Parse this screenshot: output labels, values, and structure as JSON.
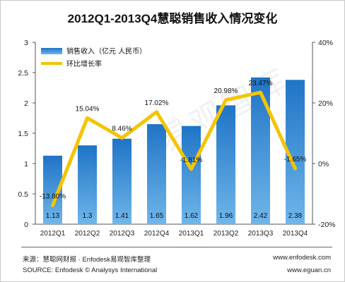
{
  "title": "2012Q1-2013Q4慧聪销售收入情况变化",
  "chart_data": {
    "type": "bar",
    "categories": [
      "2012Q1",
      "2012Q2",
      "2012Q3",
      "2012Q4",
      "2013Q1",
      "2013Q2",
      "2013Q3",
      "2013Q4"
    ],
    "series": [
      {
        "name": "销售收入（亿元  人民币）",
        "kind": "bar",
        "axis": "left",
        "values": [
          1.13,
          1.3,
          1.41,
          1.65,
          1.62,
          1.96,
          2.42,
          2.38
        ],
        "labels": [
          "1.13",
          "1.3",
          "1.41",
          "1.65",
          "1.62",
          "1.96",
          "2.42",
          "2.38"
        ]
      },
      {
        "name": "环比增长率",
        "kind": "line",
        "axis": "right",
        "values": [
          -13.8,
          15.04,
          8.46,
          17.02,
          -1.81,
          20.98,
          23.47,
          -1.65
        ],
        "labels": [
          "-13.80%",
          "15.04%",
          "8.46%",
          "17.02%",
          "-1.81%",
          "20.98%",
          "23.47%",
          "-1.65%"
        ]
      }
    ],
    "ylim": [
      0,
      3
    ],
    "y_ticks": [
      "0",
      "0.5",
      "1",
      "1.5",
      "2",
      "2.5",
      "3"
    ],
    "y2lim": [
      -20,
      40
    ],
    "y2_ticks": [
      "-20%",
      "0%",
      "20%",
      "40%"
    ],
    "legend": "top-left",
    "grid": false,
    "colors": {
      "bar": "#1f74c6",
      "bar_light": "#6fb6ea",
      "line": "#f5c400"
    }
  },
  "watermark": "易观智库",
  "footer": {
    "source_cn": "来源：慧聪网财报 · Enfodesk易观智库整理",
    "source_en": "SOURCE: Enfodesk © Analysys International",
    "site1": "www.enfodesk.com",
    "site2": "www.eguan.cn"
  }
}
